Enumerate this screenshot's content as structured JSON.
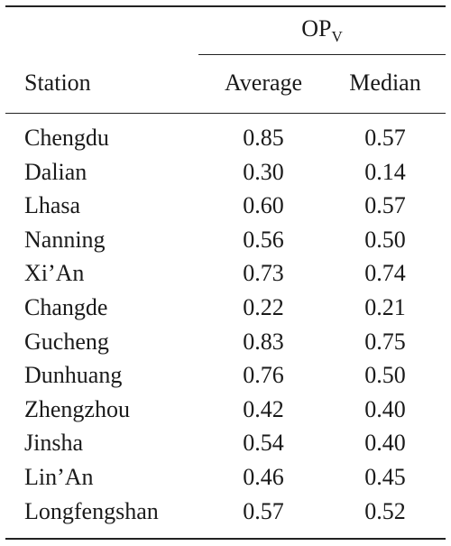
{
  "header": {
    "group_label_main": "OP",
    "group_label_sub": "V",
    "col_station": "Station",
    "col_average": "Average",
    "col_median": "Median"
  },
  "rows": [
    {
      "station": "Chengdu",
      "average": "0.85",
      "median": "0.57"
    },
    {
      "station": "Dalian",
      "average": "0.30",
      "median": "0.14"
    },
    {
      "station": "Lhasa",
      "average": "0.60",
      "median": "0.57"
    },
    {
      "station": "Nanning",
      "average": "0.56",
      "median": "0.50"
    },
    {
      "station": "Xi’An",
      "average": "0.73",
      "median": "0.74"
    },
    {
      "station": "Changde",
      "average": "0.22",
      "median": "0.21"
    },
    {
      "station": "Gucheng",
      "average": "0.83",
      "median": "0.75"
    },
    {
      "station": "Dunhuang",
      "average": "0.76",
      "median": "0.50"
    },
    {
      "station": "Zhengzhou",
      "average": "0.42",
      "median": "0.40"
    },
    {
      "station": "Jinsha",
      "average": "0.54",
      "median": "0.40"
    },
    {
      "station": "Lin’An",
      "average": "0.46",
      "median": "0.45"
    },
    {
      "station": "Longfengshan",
      "average": "0.57",
      "median": "0.52"
    }
  ]
}
